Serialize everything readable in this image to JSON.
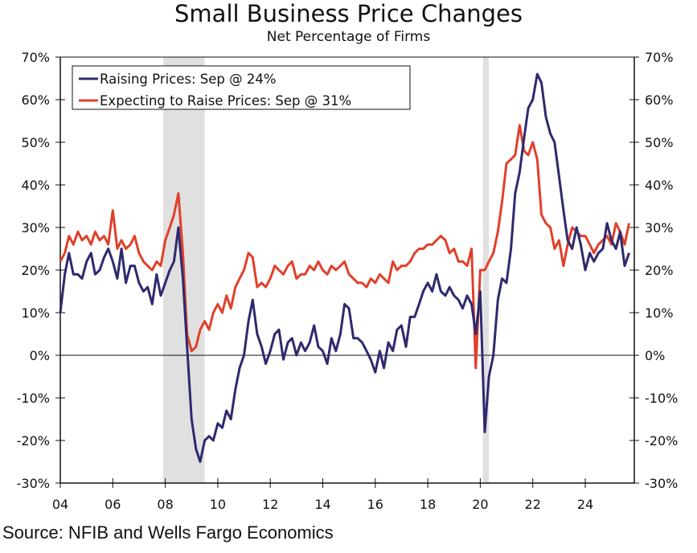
{
  "chart_data": {
    "type": "line",
    "title": "Small Business Price Changes",
    "subtitle": "Net Percentage of Firms",
    "source": "Source: NFIB and Wells Fargo Economics",
    "xlabel": "",
    "ylabel": "",
    "xlim": [
      2004.0,
      2025.9
    ],
    "ylim": [
      -30,
      70
    ],
    "y_ticks": [
      70,
      60,
      50,
      40,
      30,
      20,
      10,
      0,
      -10,
      -20,
      -30
    ],
    "y_tick_labels": [
      "70%",
      "60%",
      "50%",
      "40%",
      "30%",
      "20%",
      "10%",
      "0%",
      "-10%",
      "-20%",
      "-30%"
    ],
    "x_ticks": [
      2004,
      2006,
      2008,
      2010,
      2012,
      2014,
      2016,
      2018,
      2020,
      2022,
      2024
    ],
    "x_tick_labels": [
      "04",
      "06",
      "08",
      "10",
      "12",
      "14",
      "16",
      "18",
      "20",
      "22",
      "24"
    ],
    "grid": false,
    "zero_line": true,
    "legend_position": "top-left",
    "recessions": [
      {
        "start": 2007.92,
        "end": 2009.5
      },
      {
        "start": 2020.1,
        "end": 2020.33
      }
    ],
    "recession_color": "#e0e0e0",
    "series": [
      {
        "name": "Raising Prices: Sep @ 24%",
        "color": "#2e2a6e",
        "x": [
          2004.0,
          2004.17,
          2004.33,
          2004.5,
          2004.67,
          2004.83,
          2005.0,
          2005.17,
          2005.33,
          2005.5,
          2005.67,
          2005.83,
          2006.0,
          2006.17,
          2006.33,
          2006.5,
          2006.67,
          2006.83,
          2007.0,
          2007.17,
          2007.33,
          2007.5,
          2007.67,
          2007.83,
          2008.0,
          2008.17,
          2008.33,
          2008.5,
          2008.67,
          2008.83,
          2009.0,
          2009.17,
          2009.33,
          2009.5,
          2009.67,
          2009.83,
          2010.0,
          2010.17,
          2010.33,
          2010.5,
          2010.67,
          2010.83,
          2011.0,
          2011.17,
          2011.33,
          2011.5,
          2011.67,
          2011.83,
          2012.0,
          2012.17,
          2012.33,
          2012.5,
          2012.67,
          2012.83,
          2013.0,
          2013.17,
          2013.33,
          2013.5,
          2013.67,
          2013.83,
          2014.0,
          2014.17,
          2014.33,
          2014.5,
          2014.67,
          2014.83,
          2015.0,
          2015.17,
          2015.33,
          2015.5,
          2015.67,
          2015.83,
          2016.0,
          2016.17,
          2016.33,
          2016.5,
          2016.67,
          2016.83,
          2017.0,
          2017.17,
          2017.33,
          2017.5,
          2017.67,
          2017.83,
          2018.0,
          2018.17,
          2018.33,
          2018.5,
          2018.67,
          2018.83,
          2019.0,
          2019.17,
          2019.33,
          2019.5,
          2019.67,
          2019.83,
          2020.0,
          2020.17,
          2020.33,
          2020.5,
          2020.67,
          2020.83,
          2021.0,
          2021.17,
          2021.33,
          2021.5,
          2021.67,
          2021.83,
          2022.0,
          2022.17,
          2022.33,
          2022.5,
          2022.67,
          2022.83,
          2023.0,
          2023.17,
          2023.33,
          2023.5,
          2023.67,
          2023.83,
          2024.0,
          2024.17,
          2024.33,
          2024.5,
          2024.67,
          2024.83,
          2025.0,
          2025.17,
          2025.33,
          2025.5,
          2025.67
        ],
        "values": [
          10,
          19,
          24,
          19,
          19,
          18,
          22,
          24,
          19,
          20,
          23,
          25,
          22,
          18,
          25,
          17,
          21,
          21,
          17,
          15,
          16,
          12,
          19,
          14,
          17,
          20,
          22,
          30,
          18,
          2,
          -15,
          -22,
          -25,
          -20,
          -19,
          -20,
          -16,
          -17,
          -13,
          -15,
          -8,
          -3,
          0,
          8,
          13,
          5,
          2,
          -2,
          1,
          5,
          6,
          -1,
          3,
          4,
          0,
          3,
          1,
          3,
          7,
          2,
          1,
          -2,
          4,
          1,
          5,
          12,
          11,
          4,
          4,
          3,
          1,
          -1,
          -4,
          1,
          -3,
          3,
          1,
          6,
          7,
          2,
          9,
          9,
          12,
          15,
          17,
          15,
          19,
          15,
          14,
          16,
          14,
          13,
          11,
          14,
          12,
          5,
          15,
          -18,
          -5,
          0,
          13,
          18,
          17,
          25,
          38,
          43,
          51,
          58,
          60,
          66,
          64,
          56,
          52,
          50,
          42,
          34,
          27,
          25,
          30,
          26,
          20,
          24,
          22,
          24,
          25,
          31,
          27,
          25,
          29,
          21,
          24
        ],
        "last_value": 24
      },
      {
        "name": "Expecting to Raise Prices: Sep @ 31%",
        "color": "#e0402a",
        "x": [
          2004.0,
          2004.17,
          2004.33,
          2004.5,
          2004.67,
          2004.83,
          2005.0,
          2005.17,
          2005.33,
          2005.5,
          2005.67,
          2005.83,
          2006.0,
          2006.17,
          2006.33,
          2006.5,
          2006.67,
          2006.83,
          2007.0,
          2007.17,
          2007.33,
          2007.5,
          2007.67,
          2007.83,
          2008.0,
          2008.17,
          2008.33,
          2008.5,
          2008.67,
          2008.83,
          2009.0,
          2009.17,
          2009.33,
          2009.5,
          2009.67,
          2009.83,
          2010.0,
          2010.17,
          2010.33,
          2010.5,
          2010.67,
          2010.83,
          2011.0,
          2011.17,
          2011.33,
          2011.5,
          2011.67,
          2011.83,
          2012.0,
          2012.17,
          2012.33,
          2012.5,
          2012.67,
          2012.83,
          2013.0,
          2013.17,
          2013.33,
          2013.5,
          2013.67,
          2013.83,
          2014.0,
          2014.17,
          2014.33,
          2014.5,
          2014.67,
          2014.83,
          2015.0,
          2015.17,
          2015.33,
          2015.5,
          2015.67,
          2015.83,
          2016.0,
          2016.17,
          2016.33,
          2016.5,
          2016.67,
          2016.83,
          2017.0,
          2017.17,
          2017.33,
          2017.5,
          2017.67,
          2017.83,
          2018.0,
          2018.17,
          2018.33,
          2018.5,
          2018.67,
          2018.83,
          2019.0,
          2019.17,
          2019.33,
          2019.5,
          2019.67,
          2019.83,
          2020.0,
          2020.17,
          2020.33,
          2020.5,
          2020.67,
          2020.83,
          2021.0,
          2021.17,
          2021.33,
          2021.5,
          2021.67,
          2021.83,
          2022.0,
          2022.17,
          2022.33,
          2022.5,
          2022.67,
          2022.83,
          2023.0,
          2023.17,
          2023.33,
          2023.5,
          2023.67,
          2023.83,
          2024.0,
          2024.17,
          2024.33,
          2024.5,
          2024.67,
          2024.83,
          2025.0,
          2025.17,
          2025.33,
          2025.5,
          2025.67
        ],
        "values": [
          22,
          24,
          28,
          26,
          29,
          27,
          28,
          26,
          29,
          27,
          28,
          26,
          34,
          25,
          27,
          25,
          26,
          28,
          24,
          22,
          21,
          20,
          22,
          21,
          27,
          30,
          33,
          38,
          24,
          5,
          1,
          2,
          6,
          8,
          6,
          10,
          12,
          10,
          14,
          11,
          16,
          18,
          20,
          24,
          23,
          16,
          17,
          16,
          18,
          21,
          20,
          19,
          21,
          22,
          18,
          19,
          19,
          21,
          20,
          22,
          20,
          19,
          21,
          20,
          21,
          22,
          19,
          18,
          17,
          17,
          16,
          18,
          17,
          19,
          18,
          17,
          22,
          20,
          21,
          21,
          22,
          24,
          25,
          25,
          26,
          26,
          27,
          28,
          27,
          24,
          25,
          22,
          22,
          21,
          25,
          -3,
          20,
          20,
          22,
          24,
          29,
          36,
          45,
          46,
          47,
          54,
          48,
          47,
          50,
          46,
          33,
          31,
          30,
          25,
          27,
          21,
          26,
          30,
          29,
          28,
          28,
          26,
          24,
          26,
          27,
          28,
          26,
          31,
          29,
          26,
          31
        ],
        "last_value": 31
      }
    ]
  },
  "legend": {
    "items": [
      {
        "label": "Raising Prices: Sep @ 24%",
        "color": "#2e2a6e"
      },
      {
        "label": "Expecting to Raise Prices: Sep @ 31%",
        "color": "#e0402a"
      }
    ]
  }
}
